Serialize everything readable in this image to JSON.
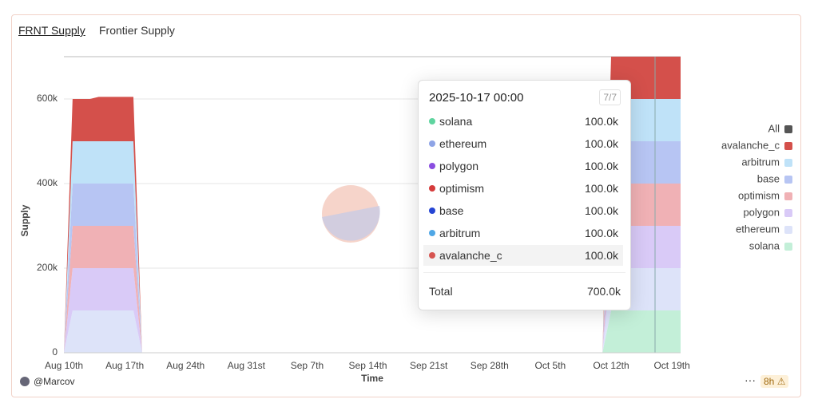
{
  "header": {
    "title": "FRNT Supply",
    "subtitle": "Frontier Supply"
  },
  "chart_data": {
    "type": "stacked_area",
    "x_label": "Time",
    "y_label": "Supply",
    "x": [
      "2025-08-10",
      "2025-08-11",
      "2025-08-12",
      "2025-08-13",
      "2025-08-14",
      "2025-08-15",
      "2025-08-16",
      "2025-08-17",
      "2025-08-18",
      "2025-08-19",
      "2025-09-14",
      "2025-10-11",
      "2025-10-12",
      "2025-10-13",
      "2025-10-14",
      "2025-10-15",
      "2025-10-16",
      "2025-10-17",
      "2025-10-18",
      "2025-10-19",
      "2025-10-20"
    ],
    "series": [
      {
        "name": "solana",
        "color": "#c3efd8",
        "values": [
          0,
          0,
          0,
          0,
          0,
          0,
          0,
          0,
          0,
          0,
          null,
          0,
          100000,
          100000,
          100000,
          100000,
          100000,
          100000,
          100000,
          100000,
          100000
        ]
      },
      {
        "name": "ethereum",
        "color": "#dde3f9",
        "values": [
          0,
          100000,
          100000,
          100000,
          100000,
          100000,
          100000,
          100000,
          100000,
          0,
          null,
          0,
          100000,
          100000,
          100000,
          100000,
          100000,
          100000,
          100000,
          100000,
          100000
        ]
      },
      {
        "name": "polygon",
        "color": "#d9caf7",
        "values": [
          0,
          100000,
          100000,
          100000,
          100000,
          100000,
          100000,
          100000,
          100000,
          0,
          null,
          0,
          100000,
          100000,
          100000,
          100000,
          100000,
          100000,
          100000,
          100000,
          100000
        ]
      },
      {
        "name": "optimism",
        "color": "#f0b1b5",
        "values": [
          0,
          100000,
          100000,
          100000,
          100000,
          100000,
          100000,
          100000,
          100000,
          0,
          null,
          0,
          100000,
          100000,
          100000,
          100000,
          100000,
          100000,
          100000,
          100000,
          100000
        ]
      },
      {
        "name": "base",
        "color": "#b7c5f3",
        "values": [
          0,
          100000,
          100000,
          100000,
          100000,
          100000,
          100000,
          100000,
          100000,
          0,
          null,
          0,
          100000,
          100000,
          100000,
          100000,
          100000,
          100000,
          100000,
          100000,
          100000
        ]
      },
      {
        "name": "arbitrum",
        "color": "#bfe2f8",
        "values": [
          0,
          100000,
          100000,
          100000,
          100000,
          100000,
          100000,
          100000,
          100000,
          0,
          null,
          0,
          100000,
          100000,
          100000,
          100000,
          100000,
          100000,
          100000,
          100000,
          100000
        ]
      },
      {
        "name": "avalanche_c",
        "color": "#d4504b",
        "values": [
          0,
          100000,
          100000,
          100000,
          105000,
          105000,
          105000,
          105000,
          105000,
          0,
          null,
          0,
          100000,
          100000,
          100000,
          100000,
          100000,
          100000,
          100000,
          100000,
          100000
        ]
      }
    ],
    "xlim": [
      "2025-08-10",
      "2025-10-20"
    ],
    "xticks": [
      {
        "value": "2025-08-10",
        "label": "Aug 10th"
      },
      {
        "value": "2025-08-17",
        "label": "Aug 17th"
      },
      {
        "value": "2025-08-24",
        "label": "Aug 24th"
      },
      {
        "value": "2025-08-31",
        "label": "Aug 31st"
      },
      {
        "value": "2025-09-07",
        "label": "Sep 7th"
      },
      {
        "value": "2025-09-14",
        "label": "Sep 14th"
      },
      {
        "value": "2025-09-21",
        "label": "Sep 21st"
      },
      {
        "value": "2025-09-28",
        "label": "Sep 28th"
      },
      {
        "value": "2025-10-05",
        "label": "Oct 5th"
      },
      {
        "value": "2025-10-12",
        "label": "Oct 12th"
      },
      {
        "value": "2025-10-19",
        "label": "Oct 19th"
      }
    ],
    "ylim": [
      0,
      700000
    ],
    "yticks": [
      0,
      {
        "value": 200000,
        "label": "200k"
      },
      {
        "value": 400000,
        "label": "400k"
      },
      {
        "value": 600000,
        "label": "600k"
      }
    ],
    "grid": true,
    "legend_all": "All",
    "legend": "right"
  },
  "tooltip": {
    "title": "2025-10-17 00:00",
    "count": "7/7",
    "rows": [
      {
        "name": "solana",
        "dot": "#5fd49f",
        "value": "100.0k"
      },
      {
        "name": "ethereum",
        "dot": "#8ea4e6",
        "value": "100.0k"
      },
      {
        "name": "polygon",
        "dot": "#8a4de0",
        "value": "100.0k"
      },
      {
        "name": "optimism",
        "dot": "#d53b3b",
        "value": "100.0k"
      },
      {
        "name": "base",
        "dot": "#2545d4",
        "value": "100.0k"
      },
      {
        "name": "arbitrum",
        "dot": "#4fa7e6",
        "value": "100.0k"
      },
      {
        "name": "avalanche_c",
        "dot": "#d65450",
        "value": "100.0k"
      }
    ],
    "total_label": "Total",
    "total": "700.0k"
  },
  "footer": {
    "user": "@Marcov",
    "age": "8h"
  }
}
